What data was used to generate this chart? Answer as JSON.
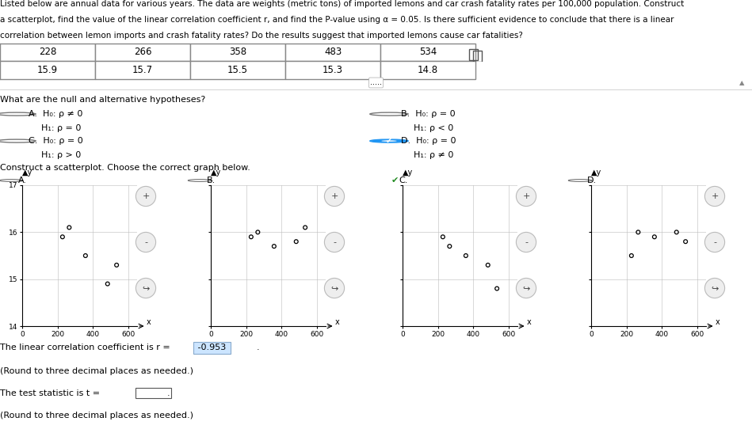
{
  "lemon_imports": [
    228,
    266,
    358,
    483,
    534
  ],
  "crash_fatality": [
    15.9,
    15.7,
    15.5,
    15.3,
    14.8
  ],
  "r_value": "-0.953",
  "bg_color": "#ffffff",
  "scatter_A_x": [
    228,
    266,
    358,
    483,
    534
  ],
  "scatter_A_y": [
    15.9,
    16.1,
    15.5,
    14.9,
    15.3
  ],
  "scatter_B_x": [
    228,
    266,
    358,
    483,
    534
  ],
  "scatter_B_y": [
    15.9,
    16.0,
    15.7,
    15.8,
    16.1
  ],
  "scatter_C_x": [
    228,
    266,
    358,
    483,
    534
  ],
  "scatter_C_y": [
    15.9,
    15.7,
    15.5,
    15.3,
    14.8
  ],
  "scatter_D_x": [
    228,
    266,
    358,
    483,
    534
  ],
  "scatter_D_y": [
    15.5,
    16.0,
    15.9,
    16.0,
    15.8
  ],
  "ylim": [
    14,
    17
  ],
  "xlim": [
    0,
    650
  ],
  "yticks": [
    14,
    15,
    16,
    17
  ],
  "xticks": [
    0,
    200,
    400,
    600
  ],
  "line1": "Listed below are annual data for various years. The data are weights (metric tons) of imported lemons and car crash fatality rates per 100,000 population. Construct",
  "line2": "a scatterplot, find the value of the linear correlation coefficient r, and find the P-value using α = 0.05. Is there sufficient evidence to conclude that there is a linear",
  "line3": "correlation between lemon imports and crash fatality rates? Do the results suggest that imported lemons cause car fatalities?",
  "hyp_q": "What are the null and alternative hypotheses?",
  "scatter_q": "Construct a scatterplot. Choose the correct graph below.",
  "r_label": "The linear correlation coefficient is r =",
  "r_round": "(Round to three decimal places as needed.)",
  "t_label": "The test statistic is t =",
  "t_round": "(Round to three decimal places as needed.)"
}
